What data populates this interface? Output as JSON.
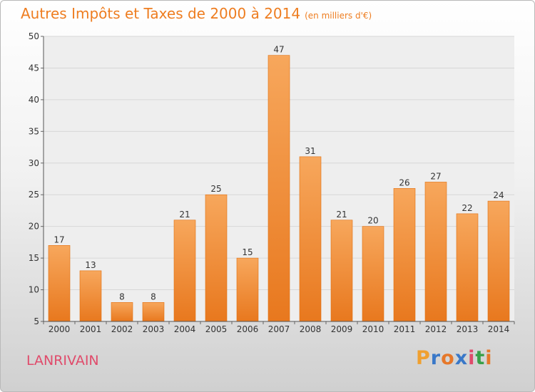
{
  "chart_data": {
    "type": "bar",
    "title": "Autres Impôts et Taxes de 2000 à 2014",
    "subtitle": "(en milliers d'€)",
    "categories": [
      "2000",
      "2001",
      "2002",
      "2003",
      "2004",
      "2005",
      "2006",
      "2007",
      "2008",
      "2009",
      "2010",
      "2011",
      "2012",
      "2013",
      "2014"
    ],
    "values": [
      17,
      13,
      8,
      8,
      21,
      25,
      15,
      47,
      31,
      21,
      20,
      26,
      27,
      22,
      24
    ],
    "ylim": [
      5,
      50
    ],
    "yticks": [
      5,
      10,
      15,
      20,
      25,
      30,
      35,
      40,
      45,
      50
    ],
    "grid": true,
    "bar_color_light": "#f7a75c",
    "bar_color_dark": "#e8781e"
  },
  "footer": {
    "town": "LANRIVAIN",
    "logo_letters": [
      "P",
      "r",
      "o",
      "x",
      "i",
      "t",
      "i"
    ],
    "logo_colors": [
      "#f0a030",
      "#3a78c8",
      "#e6782a",
      "#3a78c8",
      "#e04b6b",
      "#3aa048",
      "#e6782a"
    ]
  }
}
